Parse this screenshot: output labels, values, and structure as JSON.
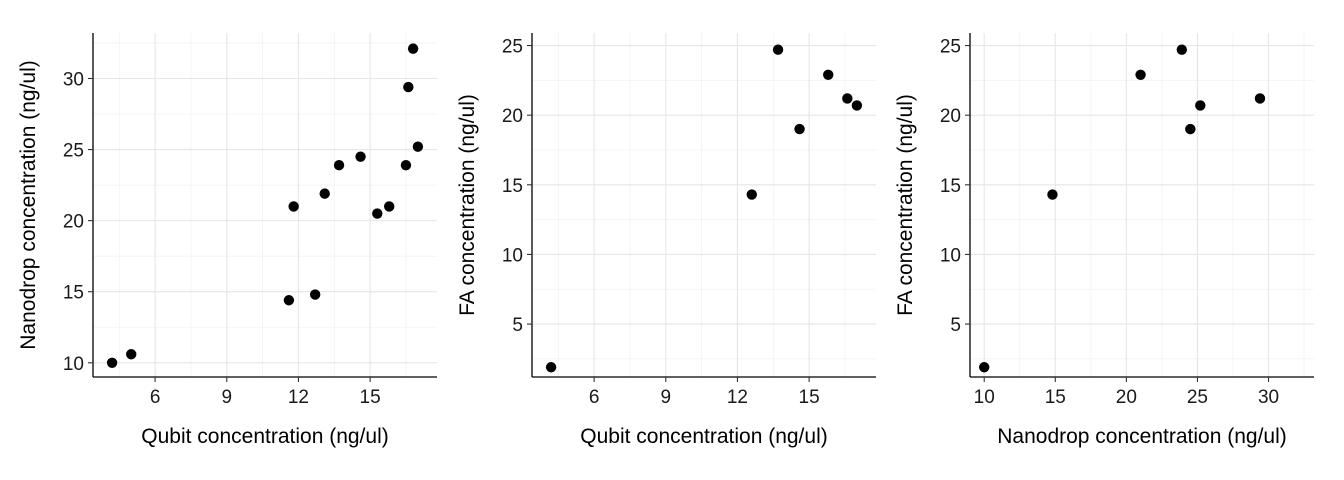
{
  "chart_data": [
    {
      "type": "scatter",
      "xlabel": "Qubit concentration (ng/ul)",
      "ylabel": "Nanodrop concentration (ng/ul)",
      "xticks": [
        6,
        9,
        12,
        15
      ],
      "yticks": [
        10,
        15,
        20,
        25,
        30
      ],
      "xlim": [
        3.4,
        17.8
      ],
      "ylim": [
        9.0,
        33.2
      ],
      "grid": true,
      "point_color": "#000000",
      "points": [
        {
          "x": 4.2,
          "y": 10.0
        },
        {
          "x": 5.0,
          "y": 10.6
        },
        {
          "x": 11.6,
          "y": 14.4
        },
        {
          "x": 11.8,
          "y": 21.0
        },
        {
          "x": 12.7,
          "y": 14.8
        },
        {
          "x": 13.1,
          "y": 21.9
        },
        {
          "x": 13.7,
          "y": 23.9
        },
        {
          "x": 14.6,
          "y": 24.5
        },
        {
          "x": 15.3,
          "y": 20.5
        },
        {
          "x": 15.8,
          "y": 21.0
        },
        {
          "x": 16.5,
          "y": 23.9
        },
        {
          "x": 16.6,
          "y": 29.4
        },
        {
          "x": 16.8,
          "y": 32.1
        },
        {
          "x": 17.0,
          "y": 25.2
        }
      ]
    },
    {
      "type": "scatter",
      "xlabel": "Qubit concentration (ng/ul)",
      "ylabel": "FA concentration (ng/ul)",
      "xticks": [
        6,
        9,
        12,
        15
      ],
      "yticks": [
        5,
        10,
        15,
        20,
        25
      ],
      "xlim": [
        3.4,
        17.8
      ],
      "ylim": [
        1.2,
        25.9
      ],
      "grid": true,
      "point_color": "#000000",
      "points": [
        {
          "x": 4.2,
          "y": 1.9
        },
        {
          "x": 12.6,
          "y": 14.3
        },
        {
          "x": 13.7,
          "y": 24.7
        },
        {
          "x": 14.6,
          "y": 19.0
        },
        {
          "x": 15.8,
          "y": 22.9
        },
        {
          "x": 16.6,
          "y": 21.2
        },
        {
          "x": 17.0,
          "y": 20.7
        }
      ]
    },
    {
      "type": "scatter",
      "xlabel": "Nanodrop concentration (ng/ul)",
      "ylabel": "FA concentration (ng/ul)",
      "xticks": [
        10,
        15,
        20,
        25,
        30
      ],
      "yticks": [
        5,
        10,
        15,
        20,
        25
      ],
      "xlim": [
        9.0,
        33.2
      ],
      "ylim": [
        1.2,
        25.9
      ],
      "grid": true,
      "point_color": "#000000",
      "points": [
        {
          "x": 10.0,
          "y": 1.9
        },
        {
          "x": 14.8,
          "y": 14.3
        },
        {
          "x": 21.0,
          "y": 22.9
        },
        {
          "x": 23.9,
          "y": 24.7
        },
        {
          "x": 24.5,
          "y": 19.0
        },
        {
          "x": 25.2,
          "y": 20.7
        },
        {
          "x": 29.4,
          "y": 21.2
        }
      ]
    }
  ]
}
